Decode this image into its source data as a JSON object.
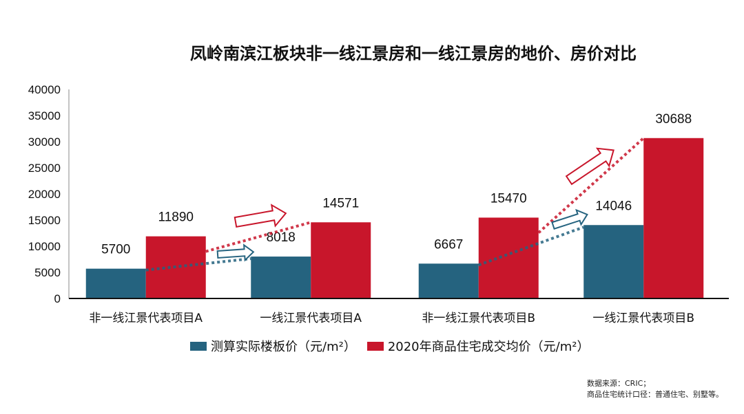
{
  "chart_data": {
    "type": "bar",
    "title": "凤岭南滨江板块非一线江景房和一线江景房的地价、房价对比",
    "categories": [
      "非一线江景代表项目A",
      "一线江景代表项目A",
      "非一线江景代表项目B",
      "一线江景代表项目B"
    ],
    "series": [
      {
        "name": "测算实际楼板价（元/m²）",
        "color": "#25637f",
        "values": [
          5700,
          8018,
          6667,
          14046
        ]
      },
      {
        "name": "2020年商品住宅成交均价（元/m²）",
        "color": "#c8162b",
        "values": [
          11890,
          14571,
          15470,
          30688
        ]
      }
    ],
    "ylim": [
      0,
      40000
    ],
    "yticks": [
      0,
      5000,
      10000,
      15000,
      20000,
      25000,
      30000,
      35000,
      40000
    ],
    "legend_position": "bottom"
  },
  "notes": [
    "数据来源：CRIC；",
    "商品住宅统计口径：普通住宅、别墅等。"
  ]
}
